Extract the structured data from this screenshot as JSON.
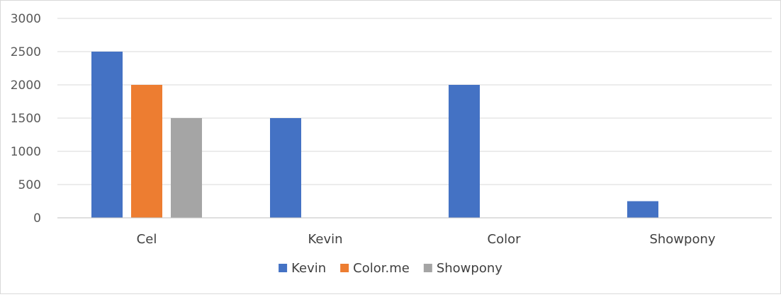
{
  "chart_data": {
    "type": "bar",
    "categories": [
      "Cel",
      "Kevin",
      "Color",
      "Showpony"
    ],
    "series": [
      {
        "name": "Kevin",
        "values": [
          2500,
          1500,
          2000,
          250
        ],
        "color": "#4472c4"
      },
      {
        "name": "Color.me",
        "values": [
          2000,
          0,
          0,
          0
        ],
        "color": "#ed7d31"
      },
      {
        "name": "Showpony",
        "values": [
          1500,
          0,
          0,
          0
        ],
        "color": "#a5a5a5"
      }
    ],
    "y_ticks": [
      "0",
      "500",
      "1000",
      "1500",
      "2000",
      "2500",
      "3000"
    ],
    "ylim": [
      0,
      3000
    ],
    "grid": true,
    "legend_position": "bottom",
    "title": "",
    "xlabel": "",
    "ylabel": ""
  }
}
